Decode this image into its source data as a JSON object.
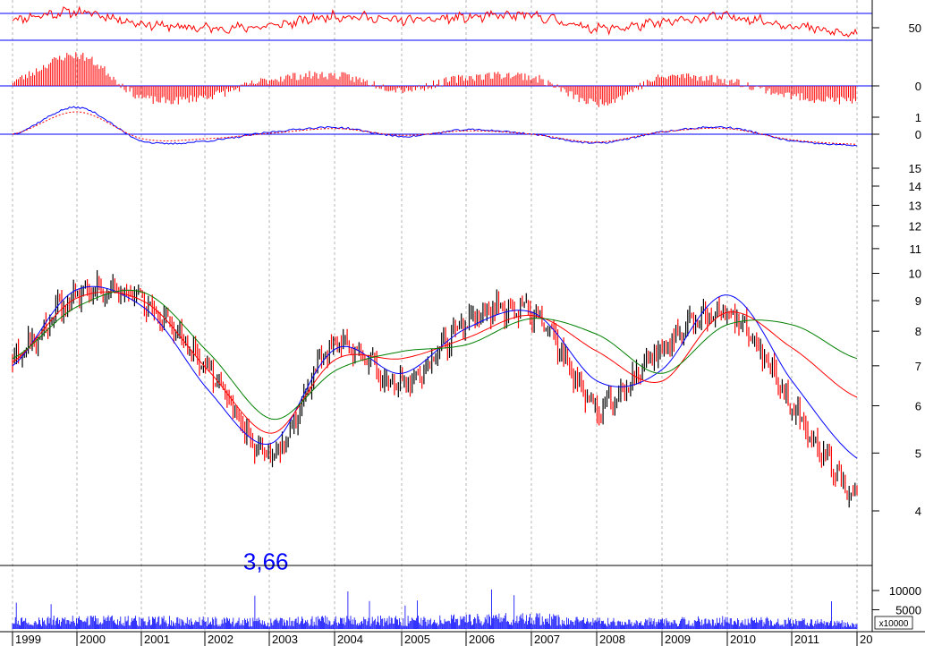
{
  "colors": {
    "background": "#ffffff",
    "grid": "#b4b4b4",
    "axis": "#000000",
    "price_up": "#000000",
    "price_down": "#ff0000",
    "ma_fast": "#0000ff",
    "ma_mid": "#ff0000",
    "ma_slow": "#008000",
    "indicator_line": "#ff0000",
    "reference_line": "#0000ff",
    "volume": "#0000ff",
    "annotation": "#0000ff"
  },
  "chart_data": [
    {
      "type": "line",
      "panel": "oscillator",
      "y_ticks": [
        "50"
      ],
      "reference_levels": [
        "70",
        "30"
      ],
      "x": [
        "1999",
        "2000",
        "2001",
        "2002",
        "2003",
        "2004",
        "2005",
        "2006",
        "2007",
        "2008",
        "2009",
        "2010",
        "2011",
        "2012"
      ],
      "series": [
        {
          "values": [
            62,
            72,
            55,
            48,
            52,
            66,
            60,
            64,
            66,
            48,
            56,
            65,
            52,
            38
          ]
        }
      ]
    },
    {
      "type": "bar",
      "panel": "momentum",
      "y_ticks": [
        "0"
      ],
      "x": [
        "1999",
        "2000",
        "2001",
        "2002",
        "2003",
        "2004",
        "2005",
        "2006",
        "2007",
        "2008",
        "2009",
        "2010",
        "2011",
        "2012"
      ],
      "values": [
        0.15,
        0.9,
        -0.35,
        -0.3,
        0.2,
        0.3,
        -0.1,
        0.25,
        0.25,
        -0.5,
        0.25,
        0.15,
        -0.3,
        -0.45
      ]
    },
    {
      "type": "line",
      "panel": "signal",
      "y_ticks": [
        "1",
        "0"
      ],
      "x": [
        "1999",
        "2000",
        "2001",
        "2002",
        "2003",
        "2004",
        "2005",
        "2006",
        "2007",
        "2008",
        "2009",
        "2010",
        "2011",
        "2012"
      ],
      "series": [
        {
          "values": [
            0.0,
            1.2,
            -0.3,
            -0.3,
            0.1,
            0.3,
            -0.1,
            0.2,
            0.0,
            -0.4,
            0.1,
            0.3,
            -0.3,
            -0.5
          ]
        },
        {
          "values": [
            0.0,
            1.0,
            -0.2,
            -0.2,
            0.05,
            0.25,
            -0.05,
            0.15,
            0.0,
            -0.35,
            0.1,
            0.25,
            -0.25,
            -0.45
          ]
        }
      ]
    },
    {
      "type": "line",
      "panel": "price",
      "scale": "log",
      "ylim": [
        3.3,
        16
      ],
      "y_ticks": [
        "15",
        "14",
        "13",
        "12",
        "11",
        "10",
        "9",
        "8",
        "7",
        "6",
        "5",
        "4"
      ],
      "x_ticks": [
        "1999",
        "2000",
        "2001",
        "2002",
        "2003",
        "2004",
        "2005",
        "2006",
        "2007",
        "2008",
        "2009",
        "2010",
        "2011",
        "20"
      ],
      "x": [
        "1999",
        "2000",
        "2001",
        "2002",
        "2003",
        "2004",
        "2005",
        "2006",
        "2007",
        "2008",
        "2009",
        "2010",
        "2011",
        "2012"
      ],
      "values": [
        7.2,
        9.2,
        9.0,
        6.9,
        5.0,
        7.6,
        6.5,
        8.3,
        8.6,
        6.0,
        7.5,
        8.6,
        6.0,
        4.2
      ],
      "series": [
        {
          "values": [
            7.0,
            9.4,
            8.8,
            6.4,
            5.2,
            7.5,
            6.8,
            8.1,
            8.6,
            6.6,
            6.9,
            9.2,
            6.6,
            4.9
          ]
        },
        {
          "values": [
            7.1,
            9.1,
            9.0,
            6.9,
            5.4,
            7.2,
            7.2,
            7.8,
            8.5,
            7.4,
            6.6,
            8.6,
            7.5,
            6.2
          ]
        },
        {
          "values": [
            7.2,
            8.8,
            9.3,
            7.4,
            5.7,
            6.9,
            7.4,
            7.6,
            8.4,
            7.9,
            6.8,
            8.2,
            8.2,
            7.2
          ]
        }
      ],
      "annotations": [
        {
          "text": "3,66",
          "x": "2002",
          "y": 3.66
        }
      ]
    },
    {
      "type": "bar",
      "panel": "volume",
      "y_ticks": [
        "10000",
        "5000"
      ],
      "unit_label": "x10000",
      "x": [
        "1999",
        "2000",
        "2001",
        "2002",
        "2003",
        "2004",
        "2005",
        "2006",
        "2007",
        "2008",
        "2009",
        "2010",
        "2011",
        "2012"
      ],
      "values": [
        2100,
        2400,
        2300,
        2200,
        2000,
        2400,
        2300,
        2600,
        2800,
        2100,
        2000,
        2300,
        2000,
        1500
      ]
    }
  ]
}
